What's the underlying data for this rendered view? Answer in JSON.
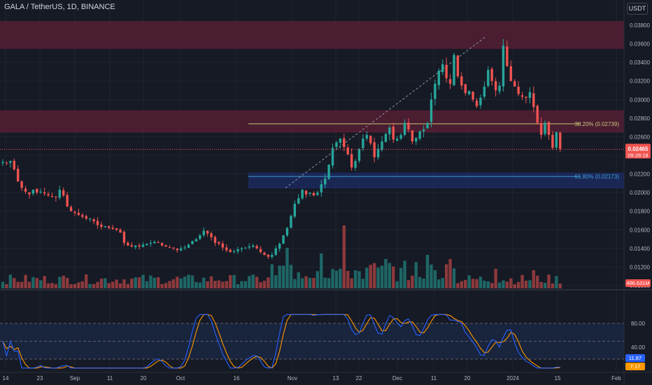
{
  "header": {
    "symbol_title": "GALA / TetherUS, 1D, BINANCE",
    "currency_label": "USDT"
  },
  "colors": {
    "background": "#161a25",
    "grid": "#1f2430",
    "up": "#26a69a",
    "down": "#ef5350",
    "fib_382": "#c9c57a",
    "fib_618": "#3d9cd9",
    "resistance_zone": "#5c1f35",
    "support_zone": "#1c2c66",
    "stoch_k": "#2962ff",
    "stoch_d": "#ff9800"
  },
  "chart_data": [
    {
      "type": "candlestick",
      "x_ticks": [
        "14",
        "23",
        "Sep",
        "11",
        "20",
        "Oct",
        "16",
        "Nov",
        "13",
        "22",
        "Dec",
        "11",
        "20",
        "2024",
        "15",
        "Feb"
      ],
      "y_ticks": [
        "0.03800",
        "0.03600",
        "0.03400",
        "0.03200",
        "0.03000",
        "0.02800",
        "0.02600",
        "0.02400",
        "0.02200",
        "0.02000",
        "0.01800",
        "0.01600",
        "0.01400",
        "0.01200",
        "0.01000"
      ],
      "ylim": [
        0.0097,
        0.0392
      ],
      "current_price": "0.02465",
      "countdown": "09:28:18",
      "close_series": [
        0.0233,
        0.0232,
        0.0234,
        0.0225,
        0.0212,
        0.0205,
        0.0201,
        0.0198,
        0.0203,
        0.02,
        0.0201,
        0.0199,
        0.0197,
        0.0196,
        0.0195,
        0.0203,
        0.0197,
        0.0185,
        0.018,
        0.0178,
        0.0176,
        0.0174,
        0.0172,
        0.0172,
        0.0169,
        0.0165,
        0.0163,
        0.0164,
        0.0162,
        0.0161,
        0.016,
        0.0157,
        0.0146,
        0.0143,
        0.0142,
        0.0143,
        0.0142,
        0.0144,
        0.0145,
        0.0146,
        0.0147,
        0.0146,
        0.0143,
        0.0142,
        0.0141,
        0.014,
        0.0138,
        0.014,
        0.0141,
        0.0144,
        0.0148,
        0.015,
        0.0154,
        0.0159,
        0.0156,
        0.0152,
        0.0146,
        0.0145,
        0.0141,
        0.0138,
        0.0136,
        0.0137,
        0.0139,
        0.014,
        0.0141,
        0.0142,
        0.0143,
        0.014,
        0.0136,
        0.0133,
        0.0131,
        0.0133,
        0.014,
        0.0145,
        0.0154,
        0.0162,
        0.0175,
        0.0188,
        0.0194,
        0.0203,
        0.0198,
        0.02,
        0.0197,
        0.02,
        0.0209,
        0.0215,
        0.023,
        0.0248,
        0.0254,
        0.0258,
        0.0249,
        0.0241,
        0.0227,
        0.0234,
        0.0247,
        0.0258,
        0.0262,
        0.0253,
        0.0238,
        0.0247,
        0.0255,
        0.0263,
        0.027,
        0.0257,
        0.0258,
        0.0262,
        0.0275,
        0.0268,
        0.0255,
        0.0259,
        0.0266,
        0.0268,
        0.0275,
        0.03,
        0.0317,
        0.0331,
        0.0338,
        0.0323,
        0.0317,
        0.0348,
        0.0325,
        0.0315,
        0.0307,
        0.0309,
        0.03,
        0.0293,
        0.0302,
        0.0314,
        0.0332,
        0.032,
        0.031,
        0.0315,
        0.0358,
        0.0336,
        0.032,
        0.0314,
        0.0306,
        0.0303,
        0.0302,
        0.0308,
        0.0292,
        0.0275,
        0.0262,
        0.0275,
        0.0262,
        0.0248,
        0.0265,
        0.0247
      ]
    },
    {
      "type": "bar",
      "title": "Volume",
      "value_label": "496.631M",
      "ylim": [
        0,
        100
      ]
    },
    {
      "type": "line",
      "title": "Stochastic",
      "ylim": [
        0,
        100
      ],
      "y_ticks": [
        "80.00",
        "40.00"
      ],
      "k_value": "11.87",
      "d_value": "7.17"
    }
  ],
  "annotations": {
    "fib_382_label": "38.20% (0.02739)",
    "fib_618_label": "61.80% (0.02173)",
    "fib_382_price": 0.02739,
    "fib_618_price": 0.02173,
    "zones": [
      {
        "name": "resistance-zone-top",
        "from": 0.0355,
        "to": 0.0384
      },
      {
        "name": "resistance-zone-mid",
        "from": 0.0265,
        "to": 0.0288
      },
      {
        "name": "support-zone",
        "from": 0.0205,
        "to": 0.0221
      }
    ]
  }
}
